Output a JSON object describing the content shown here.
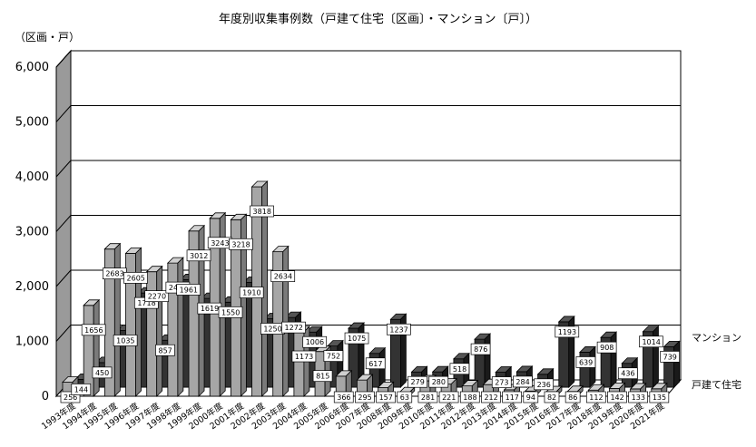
{
  "chart_data": {
    "type": "bar",
    "title": "年度別収集事例数（戸建て住宅〔区画〕・マンション〔戸〕）",
    "ylabel": "（区画・戸）",
    "ylim": [
      0,
      6000
    ],
    "yticks": [
      "0",
      "1,000",
      "2,000",
      "3,000",
      "4,000",
      "5,000",
      "6,000"
    ],
    "categories": [
      "1993年度",
      "1994年度",
      "1995年度",
      "1996年度",
      "1997年度",
      "1998年度",
      "1999年度",
      "2000年度",
      "2001年度",
      "2002年度",
      "2003年度",
      "2004年度",
      "2005年度",
      "2006年度",
      "2007年度",
      "2008年度",
      "2009年度",
      "2010年度",
      "2011年度",
      "2012年度",
      "2013年度",
      "2014年度",
      "2015年度",
      "2016年度",
      "2017年度",
      "2018年度",
      "2019年度",
      "2020年度",
      "2021年度"
    ],
    "series": [
      {
        "name": "戸建て住宅",
        "color": "#a6a6a6",
        "values": [
          256,
          1656,
          2683,
          2605,
          2270,
          2428,
          3012,
          3243,
          3218,
          3818,
          2634,
          1173,
          815,
          366,
          295,
          157,
          63,
          281,
          221,
          188,
          212,
          117,
          94,
          82,
          86,
          112,
          142,
          133,
          135
        ]
      },
      {
        "name": "マンション",
        "color": "#333333",
        "values": [
          144,
          450,
          1035,
          1718,
          857,
          1961,
          1619,
          1550,
          1910,
          1250,
          1272,
          1006,
          752,
          1075,
          617,
          1237,
          279,
          280,
          518,
          876,
          273,
          284,
          236,
          1193,
          639,
          908,
          436,
          1014,
          739
        ]
      }
    ],
    "grid": true,
    "legend": "right"
  }
}
